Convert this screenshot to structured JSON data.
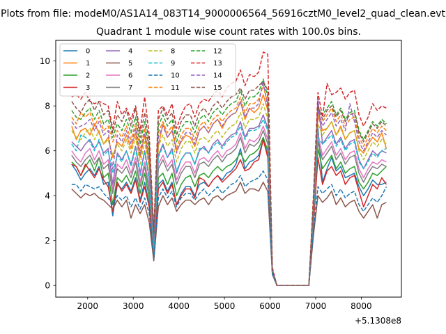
{
  "suptitle": "Plots from file: modeM0/AS1A14_083T14_9000006564_56916cztM0_level2_quad_clean.evt",
  "chart_data": {
    "type": "line",
    "title": "Quadrant 1 module wise count rates with 100.0s bins.",
    "xlabel": "",
    "ylabel": "",
    "x_offset_label": "+5.1308e8",
    "xlim": [
      1300,
      8880
    ],
    "ylim": [
      -0.52,
      10.92
    ],
    "x_ticks": [
      2000,
      3000,
      4000,
      5000,
      6000,
      7000,
      8000
    ],
    "x_tick_labels": [
      "2000",
      "3000",
      "4000",
      "5000",
      "6000",
      "7000",
      "8000"
    ],
    "y_ticks": [
      0,
      2,
      4,
      6,
      8,
      10
    ],
    "y_tick_labels": [
      "0",
      "2",
      "4",
      "6",
      "8",
      "10"
    ],
    "legend_position": "top-left",
    "legend_columns": 4,
    "x": [
      1650,
      1750,
      1850,
      1950,
      2050,
      2150,
      2250,
      2350,
      2450,
      2550,
      2650,
      2750,
      2850,
      2950,
      3050,
      3150,
      3250,
      3350,
      3450,
      3550,
      3650,
      3750,
      3850,
      3950,
      4050,
      4150,
      4250,
      4350,
      4450,
      4550,
      4650,
      4750,
      4850,
      4950,
      5050,
      5150,
      5250,
      5350,
      5450,
      5550,
      5650,
      5750,
      5850,
      5950,
      6050,
      6150,
      6850,
      6950,
      7050,
      7150,
      7250,
      7350,
      7450,
      7550,
      7650,
      7750,
      7850,
      7950,
      8050,
      8150,
      8250,
      8350,
      8450,
      8550
    ],
    "series": [
      {
        "name": "0",
        "color": "#1f77b4",
        "dash": "solid",
        "values": [
          5.4,
          5.1,
          4.7,
          5.0,
          5.2,
          4.9,
          5.3,
          4.5,
          4.6,
          3.1,
          4.5,
          4.3,
          4.6,
          4.2,
          4.8,
          3.8,
          4.6,
          3.6,
          1.2,
          4.5,
          4.7,
          4.2,
          4.6,
          3.6,
          4.1,
          4.4,
          4.4,
          4.0,
          4.5,
          4.6,
          4.4,
          4.7,
          4.9,
          4.7,
          5.0,
          5.1,
          5.4,
          6.1,
          5.2,
          5.5,
          5.6,
          5.8,
          6.5,
          5.8,
          0.5,
          0.0,
          0.0,
          2.6,
          7.0,
          4.6,
          5.2,
          5.7,
          5.1,
          5.3,
          4.8,
          4.9,
          5.0,
          4.4,
          4.0,
          4.3,
          4.7,
          4.5,
          4.5,
          4.6
        ]
      },
      {
        "name": "1",
        "color": "#ff7f0e",
        "dash": "solid",
        "values": [
          7.1,
          6.5,
          6.9,
          7.0,
          6.7,
          7.2,
          6.8,
          6.3,
          6.6,
          5.7,
          6.4,
          6.2,
          6.7,
          6.1,
          6.8,
          5.7,
          6.7,
          5.4,
          2.0,
          6.2,
          7.2,
          6.6,
          6.9,
          6.0,
          6.4,
          6.7,
          6.6,
          6.2,
          6.9,
          7.1,
          6.8,
          7.2,
          7.4,
          7.0,
          7.4,
          7.6,
          7.7,
          8.2,
          7.4,
          7.9,
          7.7,
          7.9,
          8.5,
          7.8,
          0.7,
          0.0,
          0.0,
          3.3,
          7.6,
          6.9,
          7.0,
          7.3,
          6.7,
          7.1,
          6.5,
          6.8,
          6.9,
          6.1,
          5.9,
          6.3,
          6.6,
          6.4,
          6.8,
          6.1
        ]
      },
      {
        "name": "2",
        "color": "#2ca02c",
        "dash": "solid",
        "values": [
          5.5,
          5.3,
          4.9,
          5.3,
          5.6,
          5.1,
          5.7,
          4.8,
          5.0,
          3.6,
          4.8,
          4.6,
          4.9,
          4.5,
          5.1,
          4.1,
          5.0,
          3.9,
          1.4,
          4.8,
          5.0,
          4.5,
          5.0,
          4.0,
          4.5,
          4.8,
          4.9,
          4.4,
          4.9,
          5.0,
          4.8,
          5.1,
          5.3,
          5.1,
          5.3,
          5.4,
          5.6,
          5.9,
          5.5,
          5.8,
          5.9,
          6.1,
          6.6,
          6.0,
          0.6,
          0.0,
          0.0,
          3.0,
          6.1,
          5.2,
          5.5,
          5.8,
          5.2,
          5.5,
          5.0,
          5.2,
          5.3,
          4.6,
          4.3,
          4.6,
          5.0,
          4.9,
          5.1,
          5.3
        ]
      },
      {
        "name": "3",
        "color": "#d62728",
        "dash": "solid",
        "values": [
          5.4,
          5.3,
          4.9,
          5.4,
          5.1,
          4.8,
          5.2,
          4.7,
          4.4,
          3.3,
          4.6,
          4.2,
          4.5,
          4.1,
          4.7,
          3.7,
          4.4,
          3.5,
          1.2,
          4.3,
          4.6,
          4.1,
          4.5,
          3.6,
          4.0,
          4.3,
          4.3,
          3.9,
          4.8,
          4.7,
          4.4,
          4.7,
          4.9,
          4.6,
          4.8,
          5.0,
          5.2,
          5.6,
          5.1,
          5.2,
          5.5,
          5.6,
          6.5,
          5.7,
          0.5,
          0.0,
          0.0,
          2.7,
          5.7,
          4.5,
          5.1,
          5.3,
          4.9,
          5.1,
          4.5,
          4.8,
          4.9,
          4.2,
          3.5,
          4.0,
          4.5,
          4.3,
          4.8,
          4.5
        ]
      },
      {
        "name": "4",
        "color": "#9467bd",
        "dash": "solid",
        "values": [
          6.4,
          6.2,
          6.0,
          6.3,
          6.5,
          6.1,
          6.4,
          5.9,
          6.1,
          4.5,
          5.9,
          5.6,
          6.0,
          5.4,
          6.2,
          5.0,
          6.0,
          4.8,
          1.8,
          5.8,
          6.3,
          5.7,
          6.1,
          5.0,
          5.6,
          5.9,
          5.9,
          5.4,
          6.0,
          6.2,
          5.9,
          6.3,
          6.5,
          6.2,
          6.5,
          6.7,
          6.8,
          7.3,
          6.6,
          7.0,
          7.0,
          7.1,
          7.6,
          7.0,
          0.7,
          0.0,
          0.0,
          3.5,
          8.3,
          6.3,
          6.6,
          6.9,
          6.3,
          6.6,
          6.1,
          6.4,
          6.5,
          5.6,
          5.2,
          5.6,
          6.0,
          5.8,
          6.0,
          5.9
        ]
      },
      {
        "name": "5",
        "color": "#8c564b",
        "dash": "solid",
        "values": [
          4.3,
          4.1,
          3.9,
          4.1,
          4.0,
          4.1,
          3.9,
          3.8,
          3.6,
          3.4,
          3.8,
          3.5,
          3.8,
          3.0,
          3.6,
          3.2,
          3.6,
          2.8,
          1.1,
          3.5,
          4.0,
          3.6,
          3.9,
          3.3,
          3.6,
          3.8,
          3.8,
          3.6,
          3.8,
          3.9,
          3.6,
          3.9,
          4.0,
          3.8,
          4.0,
          4.1,
          4.2,
          4.6,
          4.1,
          4.3,
          4.3,
          4.2,
          4.6,
          4.2,
          0.5,
          0.0,
          0.0,
          2.2,
          4.0,
          3.7,
          3.9,
          4.2,
          3.6,
          3.9,
          3.5,
          3.7,
          3.8,
          3.3,
          3.0,
          3.3,
          3.6,
          3.0,
          3.6,
          3.7
        ]
      },
      {
        "name": "6",
        "color": "#e377c2",
        "dash": "solid",
        "values": [
          6.0,
          5.7,
          5.5,
          5.9,
          6.1,
          5.6,
          6.0,
          5.4,
          5.6,
          4.3,
          5.4,
          5.2,
          5.6,
          5.0,
          5.7,
          4.6,
          5.5,
          4.4,
          1.6,
          5.4,
          5.8,
          5.3,
          5.6,
          4.7,
          5.2,
          5.5,
          5.5,
          5.0,
          5.6,
          5.7,
          5.5,
          5.8,
          6.0,
          5.7,
          6.0,
          6.1,
          6.3,
          6.8,
          6.1,
          6.5,
          6.4,
          6.6,
          7.1,
          6.5,
          0.6,
          0.0,
          0.0,
          3.2,
          6.7,
          5.8,
          6.1,
          6.4,
          5.8,
          6.1,
          5.6,
          5.9,
          6.0,
          5.2,
          4.8,
          5.2,
          5.5,
          5.4,
          5.6,
          5.5
        ]
      },
      {
        "name": "7",
        "color": "#7f7f7f",
        "dash": "solid",
        "values": [
          5.8,
          5.5,
          5.3,
          5.6,
          5.8,
          5.4,
          5.7,
          5.2,
          5.4,
          4.1,
          5.2,
          5.0,
          5.3,
          4.8,
          5.5,
          4.4,
          5.3,
          4.2,
          1.5,
          5.2,
          5.6,
          5.1,
          5.4,
          4.5,
          5.0,
          5.3,
          5.3,
          4.8,
          5.4,
          5.5,
          5.3,
          5.6,
          5.8,
          5.5,
          5.8,
          5.9,
          6.1,
          6.6,
          5.9,
          6.3,
          6.2,
          6.4,
          6.9,
          6.3,
          0.6,
          0.0,
          0.0,
          3.1,
          6.4,
          5.6,
          5.9,
          6.2,
          5.6,
          5.9,
          5.4,
          5.7,
          5.8,
          5.0,
          4.6,
          5.0,
          5.3,
          5.2,
          5.4,
          5.3
        ]
      },
      {
        "name": "8",
        "color": "#bcbd22",
        "dash": "dashed",
        "values": [
          6.9,
          6.6,
          6.5,
          6.8,
          7.0,
          6.5,
          6.9,
          6.3,
          6.5,
          5.8,
          6.3,
          6.0,
          6.5,
          5.9,
          6.6,
          5.4,
          6.4,
          5.2,
          1.9,
          6.2,
          6.7,
          6.2,
          6.5,
          5.5,
          6.1,
          6.4,
          6.4,
          5.9,
          6.5,
          6.6,
          6.4,
          6.7,
          6.9,
          6.6,
          6.9,
          7.1,
          7.2,
          7.7,
          7.0,
          7.4,
          7.4,
          7.5,
          8.1,
          7.4,
          0.7,
          0.0,
          0.0,
          3.3,
          7.2,
          6.7,
          7.0,
          7.3,
          6.7,
          7.0,
          6.5,
          6.8,
          6.9,
          6.0,
          5.6,
          6.0,
          6.4,
          6.2,
          6.5,
          6.3
        ]
      },
      {
        "name": "9",
        "color": "#17becf",
        "dash": "dashed",
        "values": [
          6.3,
          6.0,
          6.7,
          6.6,
          6.4,
          6.0,
          6.5,
          5.8,
          6.0,
          5.0,
          5.8,
          5.5,
          6.0,
          5.3,
          6.1,
          4.9,
          5.9,
          4.7,
          1.7,
          5.7,
          6.2,
          5.7,
          6.0,
          5.1,
          5.6,
          5.9,
          5.9,
          5.4,
          6.1,
          6.1,
          5.9,
          6.2,
          6.4,
          6.1,
          6.4,
          6.6,
          6.7,
          7.1,
          6.5,
          6.9,
          6.9,
          7.0,
          7.4,
          6.9,
          0.6,
          0.0,
          0.0,
          3.1,
          6.6,
          6.3,
          6.5,
          6.7,
          6.2,
          6.5,
          6.0,
          6.3,
          6.4,
          5.5,
          5.2,
          5.5,
          5.9,
          5.7,
          6.0,
          6.1
        ]
      },
      {
        "name": "10",
        "color": "#1f77b4",
        "dash": "dashed",
        "values": [
          4.5,
          4.5,
          4.2,
          4.5,
          4.4,
          4.3,
          4.4,
          4.1,
          3.9,
          3.6,
          4.0,
          3.8,
          4.0,
          3.5,
          3.9,
          3.4,
          3.9,
          3.2,
          1.2,
          3.9,
          4.3,
          3.9,
          4.2,
          3.5,
          3.9,
          4.1,
          4.1,
          3.8,
          4.1,
          4.3,
          4.0,
          4.2,
          4.4,
          4.1,
          4.3,
          4.5,
          4.6,
          4.9,
          4.4,
          4.6,
          4.7,
          4.8,
          5.1,
          4.7,
          0.5,
          0.0,
          0.0,
          2.4,
          4.4,
          4.1,
          4.3,
          4.5,
          4.0,
          4.3,
          3.9,
          4.1,
          4.2,
          3.6,
          3.3,
          3.6,
          3.9,
          3.7,
          4.0,
          4.4
        ]
      },
      {
        "name": "11",
        "color": "#ff7f0e",
        "dash": "dashed",
        "values": [
          7.5,
          7.2,
          7.7,
          7.5,
          7.7,
          7.1,
          7.5,
          6.9,
          7.1,
          6.4,
          6.9,
          6.6,
          7.1,
          6.5,
          7.2,
          6.0,
          7.0,
          5.7,
          2.1,
          6.8,
          7.3,
          6.8,
          7.1,
          6.1,
          6.7,
          7.0,
          7.0,
          6.5,
          7.1,
          7.3,
          7.0,
          7.4,
          7.6,
          7.3,
          7.6,
          7.8,
          7.9,
          8.4,
          7.7,
          8.1,
          8.1,
          8.3,
          8.9,
          8.1,
          0.7,
          0.0,
          0.0,
          3.5,
          7.6,
          7.3,
          7.6,
          7.9,
          7.3,
          7.6,
          7.1,
          7.4,
          7.5,
          6.6,
          6.2,
          6.6,
          7.0,
          6.8,
          7.1,
          6.9
        ]
      },
      {
        "name": "12",
        "color": "#2ca02c",
        "dash": "dashed",
        "values": [
          7.8,
          7.5,
          7.4,
          7.7,
          7.9,
          7.4,
          7.8,
          7.2,
          7.4,
          6.6,
          7.2,
          6.9,
          7.4,
          6.8,
          7.5,
          6.3,
          7.3,
          6.0,
          2.2,
          7.1,
          7.6,
          7.1,
          7.4,
          6.4,
          7.0,
          7.3,
          7.3,
          6.8,
          7.4,
          7.6,
          7.3,
          7.7,
          7.9,
          7.6,
          7.9,
          8.1,
          8.2,
          8.7,
          8.0,
          8.4,
          8.4,
          8.6,
          9.2,
          8.4,
          0.7,
          0.0,
          0.0,
          3.6,
          7.9,
          7.6,
          7.9,
          8.2,
          7.6,
          7.9,
          7.4,
          7.7,
          7.8,
          6.9,
          6.5,
          6.9,
          7.3,
          7.1,
          7.4,
          7.2
        ]
      },
      {
        "name": "13",
        "color": "#d62728",
        "dash": "dashed",
        "values": [
          8.4,
          8.5,
          8.3,
          8.6,
          8.2,
          8.1,
          8.2,
          8.1,
          8.0,
          7.0,
          8.2,
          7.6,
          7.9,
          7.4,
          8.0,
          6.9,
          8.4,
          6.7,
          2.5,
          7.8,
          8.0,
          7.6,
          8.1,
          7.0,
          7.6,
          8.0,
          8.1,
          7.5,
          8.1,
          8.3,
          8.2,
          8.5,
          8.7,
          8.4,
          8.8,
          9.0,
          9.1,
          9.6,
          8.9,
          9.4,
          9.3,
          9.5,
          10.4,
          10.3,
          0.8,
          0.0,
          0.0,
          4.0,
          8.6,
          7.5,
          9.0,
          8.5,
          8.6,
          8.8,
          8.3,
          8.6,
          8.7,
          7.6,
          7.1,
          7.5,
          8.1,
          7.8,
          8.0,
          7.9
        ]
      },
      {
        "name": "14",
        "color": "#9467bd",
        "dash": "dashed",
        "values": [
          7.3,
          7.0,
          7.1,
          7.2,
          7.4,
          6.9,
          7.3,
          6.7,
          6.9,
          5.2,
          6.7,
          6.4,
          6.9,
          6.3,
          7.0,
          5.8,
          6.8,
          5.6,
          2.0,
          6.6,
          7.1,
          6.6,
          6.9,
          5.9,
          6.5,
          6.8,
          6.8,
          6.3,
          6.9,
          7.1,
          6.8,
          7.2,
          7.4,
          7.1,
          7.4,
          7.6,
          7.7,
          8.2,
          7.5,
          7.9,
          7.9,
          8.1,
          9.1,
          7.9,
          0.7,
          0.0,
          0.0,
          3.4,
          7.8,
          7.1,
          7.4,
          7.7,
          7.1,
          7.4,
          6.9,
          8.1,
          7.3,
          6.4,
          6.0,
          6.4,
          6.8,
          6.6,
          6.9,
          6.7
        ]
      },
      {
        "name": "15",
        "color": "#8c564b",
        "dash": "dashed",
        "values": [
          8.2,
          7.9,
          7.7,
          8.1,
          8.3,
          7.8,
          8.2,
          7.6,
          7.8,
          6.8,
          7.6,
          7.3,
          7.8,
          7.1,
          7.9,
          6.6,
          7.7,
          6.3,
          2.3,
          7.4,
          7.9,
          7.4,
          7.7,
          6.7,
          7.3,
          7.6,
          7.6,
          7.1,
          7.7,
          7.9,
          7.6,
          8.0,
          8.2,
          7.9,
          8.2,
          8.4,
          8.5,
          8.8,
          8.3,
          8.7,
          8.7,
          8.9,
          9.1,
          8.7,
          0.7,
          0.0,
          0.0,
          3.7,
          8.0,
          7.4,
          7.8,
          8.0,
          7.5,
          7.8,
          7.3,
          7.6,
          7.7,
          6.8,
          6.4,
          6.8,
          7.2,
          7.0,
          7.3,
          7.1
        ]
      }
    ]
  }
}
